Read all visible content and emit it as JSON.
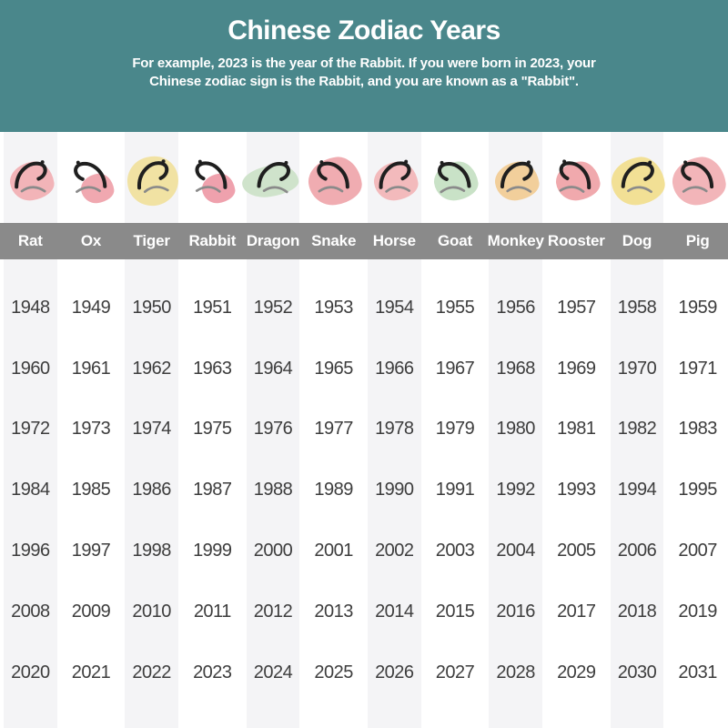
{
  "header": {
    "title": "Chinese Zodiac Years",
    "subtitle_line1": "For example, 2023 is the year of the Rabbit. If you were born in 2023, your",
    "subtitle_line2": "Chinese zodiac sign is the Rabbit, and you are known as a \"Rabbit\"."
  },
  "colors": {
    "header_bg": "#4A878B",
    "name_band_bg": "#8A8A8A",
    "stripe_bg": "#F4F4F6",
    "year_text": "#3D3D3D",
    "ink": "#1F1F1F",
    "ink_secondary": "#8A8A8A"
  },
  "chart_data": {
    "type": "table",
    "title": "Chinese Zodiac Years",
    "columns": [
      "Rat",
      "Ox",
      "Tiger",
      "Rabbit",
      "Dragon",
      "Snake",
      "Horse",
      "Goat",
      "Monkey",
      "Rooster",
      "Dog",
      "Pig"
    ],
    "rows": [
      [
        1948,
        1949,
        1950,
        1951,
        1952,
        1953,
        1954,
        1955,
        1956,
        1957,
        1958,
        1959
      ],
      [
        1960,
        1961,
        1962,
        1963,
        1964,
        1965,
        1966,
        1967,
        1968,
        1969,
        1970,
        1971
      ],
      [
        1972,
        1973,
        1974,
        1975,
        1976,
        1977,
        1978,
        1979,
        1980,
        1981,
        1982,
        1983
      ],
      [
        1984,
        1985,
        1986,
        1987,
        1988,
        1989,
        1990,
        1991,
        1992,
        1993,
        1994,
        1995
      ],
      [
        1996,
        1997,
        1998,
        1999,
        2000,
        2001,
        2002,
        2003,
        2004,
        2005,
        2006,
        2007
      ],
      [
        2008,
        2009,
        2010,
        2011,
        2012,
        2013,
        2014,
        2015,
        2016,
        2017,
        2018,
        2019
      ],
      [
        2020,
        2021,
        2022,
        2023,
        2024,
        2025,
        2026,
        2027,
        2028,
        2029,
        2030,
        2031
      ]
    ]
  },
  "zodiac": {
    "columns": [
      {
        "name": "Rat",
        "character": "子",
        "blob_color": "#F2B4B8",
        "blob_shape": "md",
        "striped": true,
        "years": [
          1948,
          1960,
          1972,
          1984,
          1996,
          2008,
          2020
        ]
      },
      {
        "name": "Ox",
        "character": "丑",
        "blob_color": "#F0A8B0",
        "blob_shape": "sm",
        "striped": false,
        "years": [
          1949,
          1961,
          1973,
          1985,
          1997,
          2009,
          2021
        ]
      },
      {
        "name": "Tiger",
        "character": "寅",
        "blob_color": "#F1E2A3",
        "blob_shape": "round",
        "striped": true,
        "years": [
          1950,
          1962,
          1974,
          1986,
          1998,
          2010,
          2022
        ]
      },
      {
        "name": "Rabbit",
        "character": "卯",
        "blob_color": "#EFA1AD",
        "blob_shape": "sm",
        "striped": false,
        "years": [
          1951,
          1963,
          1975,
          1987,
          1999,
          2011,
          2023
        ]
      },
      {
        "name": "Dragon",
        "character": "辰",
        "blob_color": "#CFE3CB",
        "blob_shape": "wide",
        "striped": true,
        "years": [
          1952,
          1964,
          1976,
          1988,
          2000,
          2012,
          2024
        ]
      },
      {
        "name": "Snake",
        "character": "巳",
        "blob_color": "#F0ACB1",
        "blob_shape": "lg",
        "striped": false,
        "years": [
          1953,
          1965,
          1977,
          1989,
          2001,
          2013,
          2025
        ]
      },
      {
        "name": "Horse",
        "character": "午",
        "blob_color": "#F3BABC",
        "blob_shape": "md",
        "striped": true,
        "years": [
          1954,
          1966,
          1978,
          1990,
          2002,
          2014,
          2026
        ]
      },
      {
        "name": "Goat",
        "character": "未",
        "blob_color": "#C9E2C7",
        "blob_shape": "md",
        "striped": false,
        "years": [
          1955,
          1967,
          1979,
          1991,
          2003,
          2015,
          2027
        ]
      },
      {
        "name": "Monkey",
        "character": "申",
        "blob_color": "#F2CF9B",
        "blob_shape": "md",
        "striped": true,
        "years": [
          1956,
          1968,
          1980,
          1992,
          2004,
          2016,
          2028
        ]
      },
      {
        "name": "Rooster",
        "character": "酉",
        "blob_color": "#F0A9AD",
        "blob_shape": "md",
        "striped": false,
        "years": [
          1957,
          1969,
          1981,
          1993,
          2005,
          2017,
          2029
        ]
      },
      {
        "name": "Dog",
        "character": "戌",
        "blob_color": "#F2E095",
        "blob_shape": "lg",
        "striped": true,
        "years": [
          1958,
          1970,
          1982,
          1994,
          2006,
          2018,
          2030
        ]
      },
      {
        "name": "Pig",
        "character": "亥",
        "blob_color": "#F2B5B9",
        "blob_shape": "lg",
        "striped": false,
        "years": [
          1959,
          1971,
          1983,
          1995,
          2007,
          2019,
          2031
        ]
      }
    ]
  }
}
